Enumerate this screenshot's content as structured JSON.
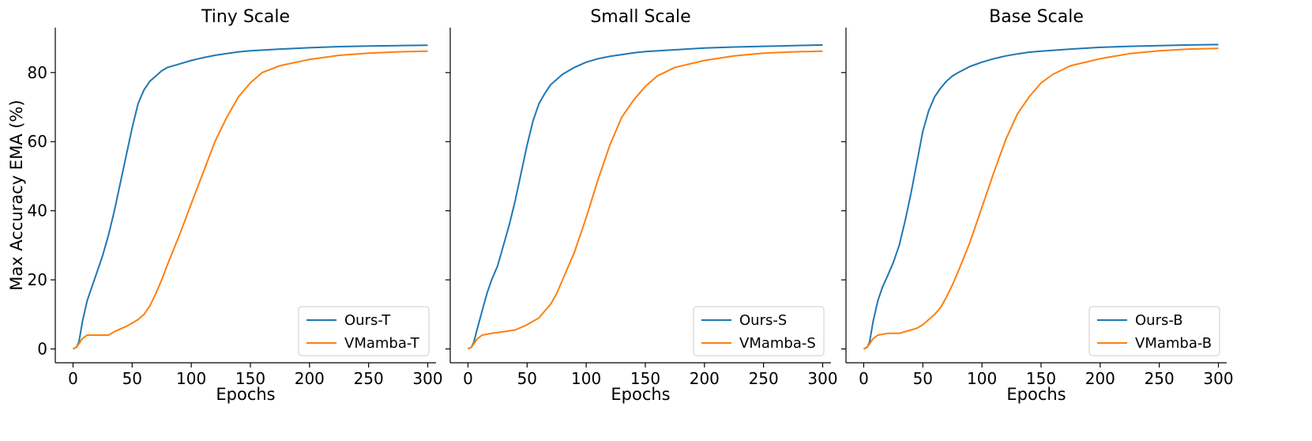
{
  "chart_data": [
    {
      "type": "line",
      "title": "Tiny Scale",
      "xlabel": "Epochs",
      "ylabel": "Max Accuracy EMA (%)",
      "xlim": [
        -15,
        307
      ],
      "ylim": [
        -4,
        93
      ],
      "xticks": [
        0,
        50,
        100,
        150,
        200,
        250,
        300
      ],
      "yticks": [
        0,
        20,
        40,
        60,
        80
      ],
      "legend_position": "lower-right",
      "series": [
        {
          "name": "Ours-T",
          "color": "#1f77b4",
          "x": [
            0,
            3,
            5,
            8,
            12,
            16,
            20,
            25,
            30,
            35,
            40,
            45,
            50,
            55,
            60,
            65,
            70,
            75,
            80,
            90,
            100,
            110,
            120,
            130,
            140,
            150,
            175,
            200,
            225,
            250,
            275,
            300
          ],
          "y": [
            0,
            0.5,
            2,
            8,
            14,
            18,
            22,
            27,
            33,
            40,
            48,
            56,
            64,
            71,
            75,
            77.5,
            79,
            80.5,
            81.5,
            82.5,
            83.5,
            84.3,
            85,
            85.5,
            86,
            86.3,
            86.8,
            87.2,
            87.5,
            87.7,
            87.8,
            87.9
          ]
        },
        {
          "name": "VMamba-T",
          "color": "#ff7f0e",
          "x": [
            0,
            3,
            5,
            8,
            12,
            20,
            30,
            35,
            40,
            45,
            50,
            55,
            60,
            65,
            70,
            75,
            80,
            90,
            100,
            110,
            120,
            130,
            140,
            150,
            160,
            175,
            200,
            225,
            250,
            275,
            300
          ],
          "y": [
            0,
            0.5,
            1.5,
            3,
            4,
            4,
            4,
            5,
            5.8,
            6.5,
            7.5,
            8.5,
            10,
            12.5,
            16,
            20,
            24.5,
            33,
            42,
            51,
            60,
            67,
            73,
            77,
            80,
            82,
            83.8,
            85,
            85.6,
            86,
            86.2
          ]
        }
      ]
    },
    {
      "type": "line",
      "title": "Small Scale",
      "xlabel": "Epochs",
      "ylabel": "",
      "xlim": [
        -15,
        307
      ],
      "ylim": [
        -4,
        93
      ],
      "xticks": [
        0,
        50,
        100,
        150,
        200,
        250,
        300
      ],
      "yticks": [
        0,
        20,
        40,
        60,
        80
      ],
      "legend_position": "lower-right",
      "series": [
        {
          "name": "Ours-S",
          "color": "#1f77b4",
          "x": [
            0,
            3,
            5,
            8,
            12,
            16,
            20,
            25,
            30,
            35,
            40,
            45,
            50,
            55,
            60,
            65,
            70,
            75,
            80,
            90,
            100,
            110,
            120,
            130,
            140,
            150,
            175,
            200,
            225,
            250,
            275,
            300
          ],
          "y": [
            0,
            0.5,
            2,
            6,
            11,
            16,
            20,
            24,
            30,
            36,
            43,
            51,
            59,
            66,
            71,
            74,
            76.5,
            78,
            79.5,
            81.5,
            83,
            84,
            84.7,
            85.2,
            85.7,
            86.1,
            86.6,
            87.1,
            87.4,
            87.6,
            87.8,
            88
          ]
        },
        {
          "name": "VMamba-S",
          "color": "#ff7f0e",
          "x": [
            0,
            3,
            5,
            8,
            12,
            20,
            30,
            40,
            50,
            55,
            60,
            65,
            70,
            75,
            80,
            90,
            100,
            110,
            120,
            130,
            140,
            150,
            160,
            175,
            200,
            225,
            250,
            275,
            300
          ],
          "y": [
            0,
            0.5,
            1.5,
            3,
            4,
            4.5,
            5,
            5.5,
            7,
            8,
            9,
            11,
            13,
            16,
            20,
            28,
            38,
            49,
            59,
            67,
            72,
            76,
            79,
            81.5,
            83.5,
            84.8,
            85.6,
            86,
            86.2
          ]
        }
      ]
    },
    {
      "type": "line",
      "title": "Base Scale",
      "xlabel": "Epochs",
      "ylabel": "",
      "xlim": [
        -15,
        307
      ],
      "ylim": [
        -4,
        93
      ],
      "xticks": [
        0,
        50,
        100,
        150,
        200,
        250,
        300
      ],
      "yticks": [
        0,
        20,
        40,
        60,
        80
      ],
      "legend_position": "lower-right",
      "series": [
        {
          "name": "Ours-B",
          "color": "#1f77b4",
          "x": [
            0,
            3,
            5,
            8,
            12,
            16,
            20,
            25,
            30,
            35,
            40,
            45,
            50,
            55,
            60,
            65,
            70,
            75,
            80,
            90,
            100,
            110,
            120,
            130,
            140,
            150,
            175,
            200,
            225,
            250,
            275,
            300
          ],
          "y": [
            0,
            0.5,
            2,
            8,
            14,
            18,
            21,
            25,
            30,
            37,
            45,
            54,
            63,
            69,
            73,
            75.5,
            77.5,
            79,
            80,
            81.8,
            83,
            84,
            84.8,
            85.4,
            85.9,
            86.2,
            86.8,
            87.3,
            87.6,
            87.8,
            88,
            88.1
          ]
        },
        {
          "name": "VMamba-B",
          "color": "#ff7f0e",
          "x": [
            0,
            3,
            5,
            8,
            12,
            20,
            30,
            40,
            45,
            50,
            55,
            60,
            65,
            70,
            75,
            80,
            90,
            100,
            110,
            120,
            130,
            140,
            150,
            160,
            175,
            200,
            225,
            250,
            275,
            300
          ],
          "y": [
            0,
            0.5,
            1.5,
            3,
            4,
            4.5,
            4.5,
            5.5,
            6,
            7,
            8.5,
            10,
            12,
            15,
            18.5,
            22.5,
            31,
            41,
            51,
            60.5,
            68,
            73,
            77,
            79.5,
            82,
            84,
            85.5,
            86.3,
            86.8,
            87
          ]
        }
      ]
    }
  ]
}
